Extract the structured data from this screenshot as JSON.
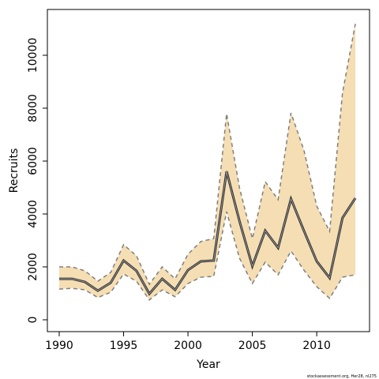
{
  "chart_data": {
    "type": "line",
    "xlabel": "Year",
    "ylabel": "Recruits",
    "footnote": "stockassessment.org, Her28, nl275",
    "x": [
      1990,
      1991,
      1992,
      1993,
      1994,
      1995,
      1996,
      1997,
      1998,
      1999,
      2000,
      2001,
      2002,
      2003,
      2004,
      2005,
      2006,
      2007,
      2008,
      2009,
      2010,
      2011,
      2012,
      2013
    ],
    "values": [
      1550,
      1550,
      1430,
      1100,
      1400,
      2240,
      1850,
      980,
      1550,
      1130,
      1880,
      2210,
      2240,
      5610,
      3730,
      2030,
      3370,
      2720,
      4570,
      3370,
      2210,
      1580,
      3850,
      4600
    ],
    "upper": [
      2000,
      2000,
      1850,
      1460,
      1790,
      2840,
      2420,
      1340,
      2000,
      1550,
      2480,
      2960,
      3070,
      7790,
      4990,
      3070,
      5220,
      4540,
      7820,
      6420,
      4300,
      3340,
      8570,
      11190
    ],
    "lower": [
      1160,
      1190,
      1130,
      840,
      1040,
      1730,
      1460,
      750,
      1130,
      870,
      1370,
      1610,
      1640,
      4090,
      2330,
      1370,
      2180,
      1700,
      2600,
      1880,
      1250,
      810,
      1610,
      1700
    ],
    "color": "#333333",
    "band_color": "#f5deb3",
    "bound_color": "#7f7f7f",
    "xlim": [
      1989.08,
      2014.1
    ],
    "ylim": [
      -448,
      11731
    ],
    "xticks": [
      1990,
      1995,
      2000,
      2005,
      2010
    ],
    "yticks": [
      0,
      2000,
      4000,
      6000,
      8000,
      10000
    ]
  }
}
